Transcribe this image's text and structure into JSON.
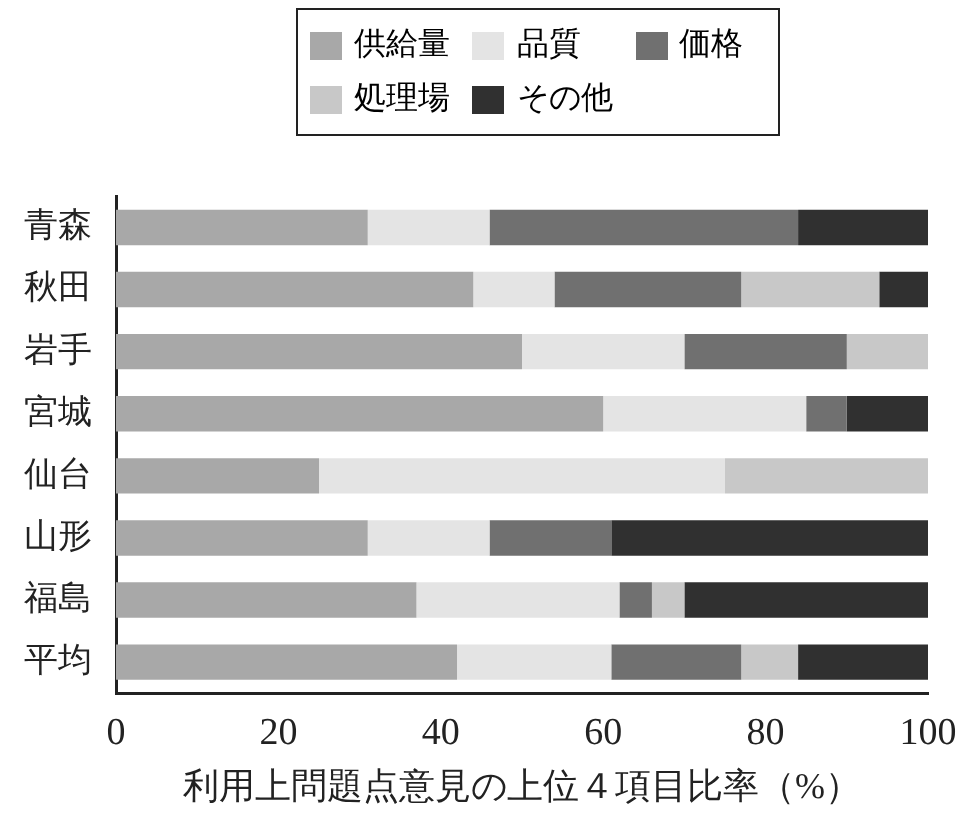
{
  "chart_data": {
    "type": "bar",
    "orientation": "horizontal",
    "stacked": true,
    "categories": [
      "青森",
      "秋田",
      "岩手",
      "宮城",
      "仙台",
      "山形",
      "福島",
      "平均"
    ],
    "series": [
      {
        "name": "供給量",
        "color": "#a8a8a8",
        "values": [
          31,
          44,
          50,
          60,
          25,
          31,
          37,
          42
        ]
      },
      {
        "name": "品質",
        "color": "#e4e4e4",
        "values": [
          15,
          10,
          20,
          25,
          50,
          15,
          25,
          19
        ]
      },
      {
        "name": "価格",
        "color": "#707070",
        "values": [
          38,
          23,
          20,
          5,
          0,
          15,
          4,
          16
        ]
      },
      {
        "name": "処理場",
        "color": "#c8c8c8",
        "values": [
          0,
          17,
          10,
          0,
          25,
          0,
          4,
          7
        ]
      },
      {
        "name": "その他",
        "color": "#303030",
        "values": [
          16,
          6,
          0,
          10,
          0,
          39,
          30,
          16
        ]
      }
    ],
    "xlabel": "利用上問題点意見の上位４項目比率（%）",
    "xlim": [
      0,
      100
    ],
    "xticks": [
      0,
      20,
      40,
      60,
      80,
      100
    ],
    "grid": false,
    "legend": "top"
  }
}
